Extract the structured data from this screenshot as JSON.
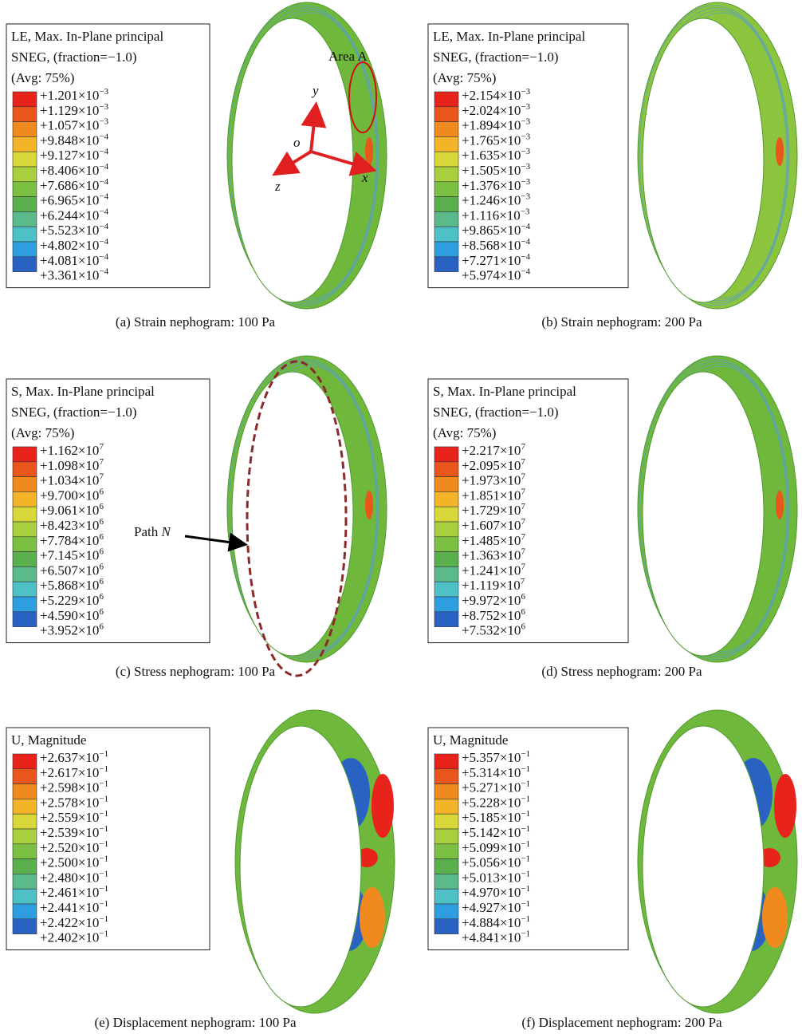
{
  "panels": [
    {
      "legend": {
        "title_lines": [
          "LE, Max. In-Plane principal",
          "SNEG, (fraction=−1.0)",
          "(Avg: 75%)"
        ],
        "labels": [
          {
            "base": "+1.201×10",
            "exp": "−3"
          },
          {
            "base": "+1.129×10",
            "exp": "−3"
          },
          {
            "base": "+1.057×10",
            "exp": "−3"
          },
          {
            "base": "+9.848×10",
            "exp": "−4"
          },
          {
            "base": "+9.127×10",
            "exp": "−4"
          },
          {
            "base": "+8.406×10",
            "exp": "−4"
          },
          {
            "base": "+7.686×10",
            "exp": "−4"
          },
          {
            "base": "+6.965×10",
            "exp": "−4"
          },
          {
            "base": "+6.244×10",
            "exp": "−4"
          },
          {
            "base": "+5.523×10",
            "exp": "−4"
          },
          {
            "base": "+4.802×10",
            "exp": "−4"
          },
          {
            "base": "+4.081×10",
            "exp": "−4"
          },
          {
            "base": "+3.361×10",
            "exp": "−4"
          }
        ]
      },
      "caption": "(a) Strain nephogram: 100 Pa"
    },
    {
      "legend": {
        "title_lines": [
          "LE, Max. In-Plane principal",
          "SNEG, (fraction=−1.0)",
          "(Avg: 75%)"
        ],
        "labels": [
          {
            "base": "+2.154×10",
            "exp": "−3"
          },
          {
            "base": "+2.024×10",
            "exp": "−3"
          },
          {
            "base": "+1.894×10",
            "exp": "−3"
          },
          {
            "base": "+1.765×10",
            "exp": "−3"
          },
          {
            "base": "+1.635×10",
            "exp": "−3"
          },
          {
            "base": "+1.505×10",
            "exp": "−3"
          },
          {
            "base": "+1.376×10",
            "exp": "−3"
          },
          {
            "base": "+1.246×10",
            "exp": "−3"
          },
          {
            "base": "+1.116×10",
            "exp": "−3"
          },
          {
            "base": "+9.865×10",
            "exp": "−4"
          },
          {
            "base": "+8.568×10",
            "exp": "−4"
          },
          {
            "base": "+7.271×10",
            "exp": "−4"
          },
          {
            "base": "+5.974×10",
            "exp": "−4"
          }
        ]
      },
      "caption": "(b) Strain nephogram: 200 Pa"
    },
    {
      "legend": {
        "title_lines": [
          "S, Max. In-Plane principal",
          "SNEG, (fraction=−1.0)",
          "(Avg: 75%)"
        ],
        "labels": [
          {
            "base": "+1.162×10",
            "exp": "7"
          },
          {
            "base": "+1.098×10",
            "exp": "7"
          },
          {
            "base": "+1.034×10",
            "exp": "7"
          },
          {
            "base": "+9.700×10",
            "exp": "6"
          },
          {
            "base": "+9.061×10",
            "exp": "6"
          },
          {
            "base": "+8.423×10",
            "exp": "6"
          },
          {
            "base": "+7.784×10",
            "exp": "6"
          },
          {
            "base": "+7.145×10",
            "exp": "6"
          },
          {
            "base": "+6.507×10",
            "exp": "6"
          },
          {
            "base": "+5.868×10",
            "exp": "6"
          },
          {
            "base": "+5.229×10",
            "exp": "6"
          },
          {
            "base": "+4.590×10",
            "exp": "6"
          },
          {
            "base": "+3.952×10",
            "exp": "6"
          }
        ]
      },
      "caption": "(c) Stress nephogram: 100 Pa"
    },
    {
      "legend": {
        "title_lines": [
          "S, Max. In-Plane principal",
          "SNEG, (fraction=−1.0)",
          "(Avg: 75%)"
        ],
        "labels": [
          {
            "base": "+2.217×10",
            "exp": "7"
          },
          {
            "base": "+2.095×10",
            "exp": "7"
          },
          {
            "base": "+1.973×10",
            "exp": "7"
          },
          {
            "base": "+1.851×10",
            "exp": "7"
          },
          {
            "base": "+1.729×10",
            "exp": "7"
          },
          {
            "base": "+1.607×10",
            "exp": "7"
          },
          {
            "base": "+1.485×10",
            "exp": "7"
          },
          {
            "base": "+1.363×10",
            "exp": "7"
          },
          {
            "base": "+1.241×10",
            "exp": "7"
          },
          {
            "base": "+1.119×10",
            "exp": "7"
          },
          {
            "base": "+9.972×10",
            "exp": "6"
          },
          {
            "base": "+8.752×10",
            "exp": "6"
          },
          {
            "base": "+7.532×10",
            "exp": "6"
          }
        ]
      },
      "caption": "(d) Stress nephogram: 200 Pa"
    },
    {
      "legend": {
        "title_lines": [
          "U, Magnitude"
        ],
        "labels": [
          {
            "base": "+2.637×10",
            "exp": "−1"
          },
          {
            "base": "+2.617×10",
            "exp": "−1"
          },
          {
            "base": "+2.598×10",
            "exp": "−1"
          },
          {
            "base": "+2.578×10",
            "exp": "−1"
          },
          {
            "base": "+2.559×10",
            "exp": "−1"
          },
          {
            "base": "+2.539×10",
            "exp": "−1"
          },
          {
            "base": "+2.520×10",
            "exp": "−1"
          },
          {
            "base": "+2.500×10",
            "exp": "−1"
          },
          {
            "base": "+2.480×10",
            "exp": "−1"
          },
          {
            "base": "+2.461×10",
            "exp": "−1"
          },
          {
            "base": "+2.441×10",
            "exp": "−1"
          },
          {
            "base": "+2.422×10",
            "exp": "−1"
          },
          {
            "base": "+2.402×10",
            "exp": "−1"
          }
        ]
      },
      "caption": "(e) Displacement nephogram: 100 Pa"
    },
    {
      "legend": {
        "title_lines": [
          "U, Magnitude"
        ],
        "labels": [
          {
            "base": "+5.357×10",
            "exp": "−1"
          },
          {
            "base": "+5.314×10",
            "exp": "−1"
          },
          {
            "base": "+5.271×10",
            "exp": "−1"
          },
          {
            "base": "+5.228×10",
            "exp": "−1"
          },
          {
            "base": "+5.185×10",
            "exp": "−1"
          },
          {
            "base": "+5.142×10",
            "exp": "−1"
          },
          {
            "base": "+5.099×10",
            "exp": "−1"
          },
          {
            "base": "+5.056×10",
            "exp": "−1"
          },
          {
            "base": "+5.013×10",
            "exp": "−1"
          },
          {
            "base": "+4.970×10",
            "exp": "−1"
          },
          {
            "base": "+4.927×10",
            "exp": "−1"
          },
          {
            "base": "+4.884×10",
            "exp": "−1"
          },
          {
            "base": "+4.841×10",
            "exp": "−1"
          }
        ]
      },
      "caption": "(f) Displacement nephogram: 200 Pa"
    }
  ],
  "annotations": {
    "area_a": "Area A",
    "axis_y": "y",
    "axis_o": "o",
    "axis_z": "z",
    "axis_x": "x",
    "path_text": "Path",
    "path_var": "N"
  }
}
